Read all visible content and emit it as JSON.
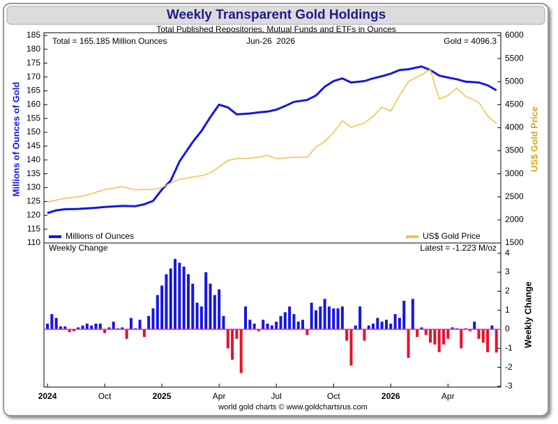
{
  "chart_data": [
    {
      "type": "line",
      "title": "Weekly Transparent Gold Holdings",
      "subtitle": "Total Published Repositories, Mutual Funds and ETFs in Ounces",
      "annotations": [
        "Total = 165.185 Million Ounces",
        "Jun-26  2026",
        "Gold = 4096.3"
      ],
      "y_label": "Millions of Ounces of Gold",
      "y2_label": "US$ Gold Price",
      "x": [
        0,
        2,
        4,
        7,
        9,
        11,
        13,
        15,
        17,
        20,
        22,
        24,
        26,
        28,
        30,
        33,
        35,
        37,
        39,
        41,
        43,
        46,
        48,
        50,
        52,
        54,
        56,
        59,
        61,
        63,
        65,
        67,
        69,
        72,
        74,
        76,
        78,
        80,
        82,
        85,
        87,
        89,
        91,
        93,
        95,
        98,
        100,
        102
      ],
      "series": [
        {
          "name": "Millions of Ounces",
          "color": "#1515e6",
          "axis": "y",
          "values": [
            120.8,
            121.8,
            122.2,
            122.3,
            122.5,
            122.7,
            123.0,
            123.2,
            123.4,
            123.3,
            124.0,
            125.2,
            129.3,
            132.5,
            139.5,
            146.5,
            150.5,
            155.5,
            160.0,
            159.0,
            156.5,
            156.8,
            157.2,
            157.5,
            158.2,
            159.5,
            161.0,
            161.7,
            163.3,
            166.5,
            168.5,
            169.5,
            168.0,
            168.5,
            169.5,
            170.3,
            171.2,
            172.5,
            172.8,
            173.8,
            172.5,
            170.5,
            169.8,
            169.2,
            168.3,
            168.0,
            167.0,
            165.185
          ]
        },
        {
          "name": "US$ Gold Price",
          "color": "#f2c046",
          "axis": "y2",
          "values": [
            2390,
            2430,
            2470,
            2500,
            2540,
            2600,
            2660,
            2690,
            2720,
            2650,
            2660,
            2660,
            2700,
            2800,
            2880,
            2930,
            2960,
            3020,
            3150,
            3290,
            3330,
            3340,
            3360,
            3400,
            3330,
            3340,
            3360,
            3360,
            3580,
            3700,
            3900,
            4150,
            4010,
            4100,
            4250,
            4450,
            4360,
            4700,
            5000,
            5150,
            5260,
            4620,
            4700,
            4860,
            4680,
            4550,
            4250,
            4096.3
          ]
        }
      ],
      "xlim": [
        -0.8,
        103
      ],
      "ylim": [
        110,
        186
      ],
      "yticks": [
        110,
        115,
        120,
        125,
        130,
        135,
        140,
        145,
        150,
        155,
        160,
        165,
        170,
        175,
        180,
        185
      ],
      "y2lim": [
        1500,
        6060
      ],
      "y2ticks": [
        1500,
        2000,
        2500,
        3000,
        3500,
        4000,
        4500,
        5000,
        5500,
        6000
      ],
      "legend": "bottom"
    },
    {
      "type": "bar",
      "y_label": "Weekly Change",
      "annotations": [
        "Weekly Change",
        "Latest = -1.223 M/oz"
      ],
      "source": "world gold charts © www.goldchartsrus.com",
      "color": "#1515e6",
      "negative_color": "#e8102a",
      "zero_line_color": "#e020e0",
      "x": [
        0,
        1,
        2,
        3,
        4,
        5,
        6,
        7,
        8,
        9,
        10,
        11,
        12,
        13,
        14,
        15,
        16,
        17,
        18,
        19,
        20,
        21,
        22,
        23,
        24,
        25,
        26,
        27,
        28,
        29,
        30,
        31,
        32,
        33,
        34,
        35,
        36,
        37,
        38,
        39,
        40,
        41,
        42,
        43,
        44,
        45,
        46,
        47,
        48,
        49,
        50,
        51,
        52,
        53,
        54,
        55,
        56,
        57,
        58,
        59,
        60,
        61,
        62,
        63,
        64,
        65,
        66,
        67,
        68,
        69,
        70,
        71,
        72,
        73,
        74,
        75,
        76,
        77,
        78,
        79,
        80,
        81,
        82,
        83,
        84,
        85,
        86,
        87,
        88,
        89,
        90,
        91,
        92,
        93,
        94,
        95,
        96,
        97,
        98,
        99,
        100,
        101,
        102
      ],
      "values": [
        0.3,
        0.8,
        0.6,
        0.15,
        0.15,
        -0.15,
        -0.1,
        0.1,
        0.2,
        0.3,
        0.2,
        0.3,
        0.3,
        -0.2,
        0.1,
        0.4,
        0.05,
        0.1,
        -0.5,
        0.6,
        0.05,
        0.5,
        -0.4,
        0.7,
        1.1,
        1.8,
        2.3,
        2.9,
        3.2,
        3.7,
        3.5,
        3.3,
        2.9,
        2.4,
        1.4,
        1.2,
        3.0,
        2.4,
        1.8,
        2.1,
        0.7,
        -1.0,
        -1.6,
        -0.5,
        -2.3,
        1.2,
        0.5,
        0.3,
        -0.1,
        0.5,
        0.3,
        0.2,
        0.4,
        0.7,
        0.9,
        1.2,
        0.8,
        0.4,
        0.5,
        -0.3,
        1.4,
        1.0,
        1.2,
        1.6,
        1.2,
        1.1,
        1.1,
        1.2,
        -0.6,
        -1.9,
        0.2,
        1.2,
        -0.6,
        0.2,
        0.3,
        0.6,
        0.4,
        0.5,
        0.3,
        0.8,
        0.6,
        1.5,
        -1.5,
        1.6,
        -0.4,
        0.1,
        -0.3,
        -0.7,
        -0.8,
        -1.2,
        -0.8,
        -0.5,
        0.1,
        0.05,
        -1.0,
        0.05,
        -0.1,
        0.4,
        -0.5,
        -0.7,
        -1.2,
        0.2,
        -1.223
      ],
      "xlim": [
        -0.8,
        103
      ],
      "xticks": [
        {
          "value": 0,
          "label": "2024"
        },
        {
          "value": 13,
          "label": "Oct"
        },
        {
          "value": 26,
          "label": "2025"
        },
        {
          "value": 39,
          "label": "Apr"
        },
        {
          "value": 52,
          "label": "Jul"
        },
        {
          "value": 65,
          "label": "Oct"
        },
        {
          "value": 78,
          "label": "2026"
        },
        {
          "value": 91,
          "label": "Apr"
        }
      ],
      "ylim": [
        -3.04,
        4.54
      ],
      "yticks": [
        -3,
        -2,
        -1,
        0,
        1,
        2,
        3,
        4
      ]
    }
  ]
}
